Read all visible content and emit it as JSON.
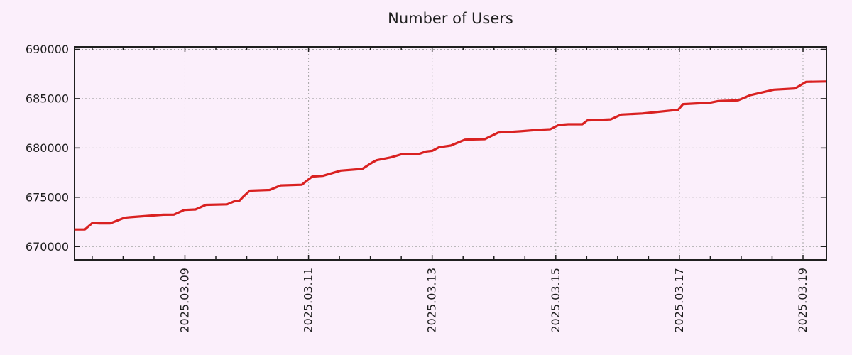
{
  "title": "Number of Users",
  "colors": {
    "background": "#fbeffb",
    "series_line": "#d92121",
    "grid": "#a5a5a5",
    "axis": "#1f1f1f",
    "text": "#1f1f1f"
  },
  "chart_data": {
    "type": "line",
    "title": "Number of Users",
    "xlabel": "",
    "ylabel": "",
    "legend": "none",
    "grid": "dotted",
    "x_unit": "day of March 2025 (fractional)",
    "xlim": [
      7.214,
      19.379
    ],
    "ylim": [
      668650,
      690250
    ],
    "x_major_ticks": [
      {
        "day": 9,
        "label": "2025.03.09"
      },
      {
        "day": 11,
        "label": "2025.03.11"
      },
      {
        "day": 13,
        "label": "2025.03.13"
      },
      {
        "day": 15,
        "label": "2025.03.15"
      },
      {
        "day": 17,
        "label": "2025.03.17"
      },
      {
        "day": 19,
        "label": "2025.03.19"
      }
    ],
    "x_minor_step": 0.5,
    "y_major_ticks": [
      {
        "value": 670000,
        "label": "670000"
      },
      {
        "value": 675000,
        "label": "675000"
      },
      {
        "value": 680000,
        "label": "680000"
      },
      {
        "value": 685000,
        "label": "685000"
      },
      {
        "value": 690000,
        "label": "690000"
      }
    ],
    "x": [
      7.21,
      7.38,
      7.5,
      7.62,
      7.79,
      8.02,
      8.1,
      8.65,
      8.82,
      8.99,
      9.17,
      9.34,
      9.68,
      9.8,
      9.88,
      9.95,
      10.05,
      10.37,
      10.55,
      10.89,
      11.06,
      11.23,
      11.52,
      11.87,
      12.04,
      12.1,
      12.33,
      12.5,
      12.79,
      12.9,
      13.0,
      13.11,
      13.3,
      13.53,
      13.85,
      14.07,
      14.28,
      14.43,
      14.74,
      14.91,
      15.05,
      15.2,
      15.43,
      15.51,
      15.89,
      16.06,
      16.4,
      16.98,
      17.06,
      17.5,
      17.63,
      17.95,
      18.15,
      18.53,
      18.87,
      19.05,
      19.37
    ],
    "series": [
      {
        "name": "users",
        "color": "#d92121",
        "values": [
          671730,
          671730,
          672380,
          672350,
          672350,
          672920,
          672970,
          673230,
          673240,
          673710,
          673760,
          674230,
          674280,
          674590,
          674640,
          675100,
          675670,
          675740,
          676200,
          676270,
          677100,
          677170,
          677700,
          677870,
          678560,
          678750,
          679040,
          679350,
          679400,
          679640,
          679710,
          680070,
          680240,
          680840,
          680890,
          681560,
          681630,
          681690,
          681850,
          681900,
          682330,
          682400,
          682400,
          682790,
          682900,
          683390,
          683500,
          683870,
          684450,
          684590,
          684760,
          684830,
          685360,
          685910,
          686030,
          686700,
          686740
        ]
      }
    ]
  }
}
